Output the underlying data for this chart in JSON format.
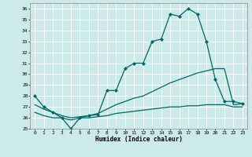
{
  "xlabel": "Humidex (Indice chaleur)",
  "bg_color": "#cceaea",
  "grid_color": "#b0d8d8",
  "line_color": "#006666",
  "xlim": [
    -0.5,
    23.5
  ],
  "ylim": [
    25,
    36.5
  ],
  "yticks": [
    25,
    26,
    27,
    28,
    29,
    30,
    31,
    32,
    33,
    34,
    35,
    36
  ],
  "xticks": [
    0,
    1,
    2,
    3,
    4,
    5,
    6,
    7,
    8,
    9,
    10,
    11,
    12,
    13,
    14,
    15,
    16,
    17,
    18,
    19,
    20,
    21,
    22,
    23
  ],
  "series": [
    {
      "x": [
        0,
        1,
        2,
        3,
        4,
        5,
        6,
        7,
        8,
        9,
        10,
        11,
        12,
        13,
        14,
        15,
        16,
        17,
        18,
        19,
        20,
        21,
        22,
        23
      ],
      "y": [
        28,
        27,
        26.5,
        26,
        25,
        26,
        26.2,
        26.3,
        28.5,
        28.5,
        30.5,
        31,
        31.0,
        33,
        33.2,
        35.5,
        35.3,
        36,
        35.5,
        33,
        29.5,
        27.5,
        27.5,
        27.3
      ],
      "marker": "D",
      "markersize": 2.0,
      "lw": 0.9
    },
    {
      "x": [
        0,
        1,
        2,
        3,
        4,
        5,
        6,
        7,
        8,
        9,
        10,
        11,
        12,
        13,
        14,
        15,
        16,
        17,
        18,
        19,
        20,
        21,
        22,
        23
      ],
      "y": [
        27.2,
        26.8,
        26.5,
        26.2,
        26.0,
        26.1,
        26.2,
        26.4,
        26.8,
        27.2,
        27.5,
        27.8,
        28.0,
        28.4,
        28.8,
        29.2,
        29.5,
        29.8,
        30.1,
        30.3,
        30.5,
        30.5,
        27.2,
        27.3
      ],
      "marker": null,
      "markersize": 0,
      "lw": 0.9
    },
    {
      "x": [
        0,
        1,
        2,
        3,
        4,
        5,
        6,
        7,
        8,
        9,
        10,
        11,
        12,
        13,
        14,
        15,
        16,
        17,
        18,
        19,
        20,
        21,
        22,
        23
      ],
      "y": [
        26.5,
        26.2,
        26.0,
        26.0,
        25.8,
        26.0,
        26.0,
        26.1,
        26.2,
        26.4,
        26.5,
        26.6,
        26.7,
        26.8,
        26.9,
        27.0,
        27.0,
        27.1,
        27.1,
        27.2,
        27.2,
        27.2,
        27.0,
        27.0
      ],
      "marker": null,
      "markersize": 0,
      "lw": 0.9
    }
  ]
}
